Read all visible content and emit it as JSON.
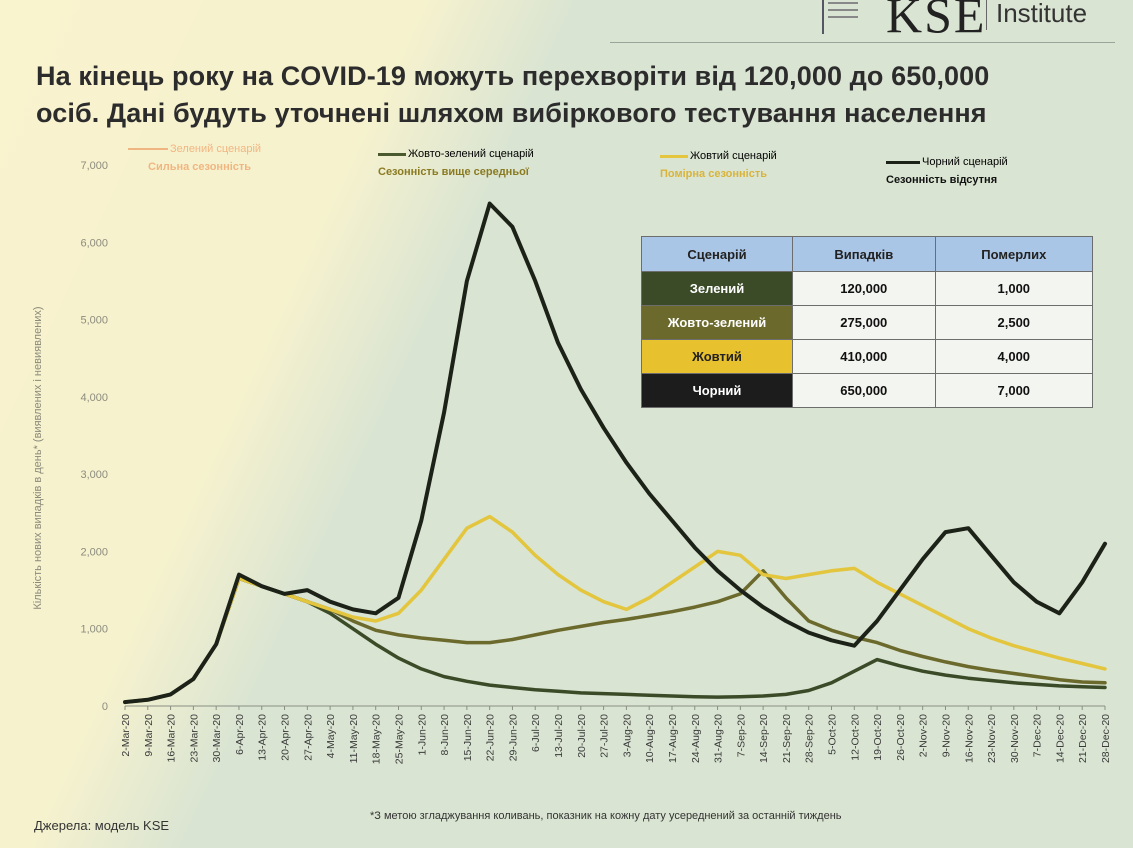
{
  "header": {
    "logo_text": "KSE",
    "institute": "Institute",
    "headline_line1": "На кінець року на COVID-19 можуть перехворіти від 120,000 до 650,000",
    "headline_line2": "осіб. Дані будуть уточнені шляхом вибіркового тестування населення"
  },
  "legend": [
    {
      "name": "Зелений сценарій",
      "subtitle": "Сильна сезонність",
      "color": "#f0b682"
    },
    {
      "name": "Жовто-зелений сценарій",
      "subtitle": "Сезонність вище середньої",
      "color": "#4a5a2e"
    },
    {
      "name": "Жовтий сценарій",
      "subtitle": "Помірна сезонність",
      "color": "#e3c53e"
    },
    {
      "name": "Чорний сценарій",
      "subtitle": "Сезонність відсутня",
      "color": "#1d2218"
    }
  ],
  "scenario_table": {
    "headers": [
      "Сценарій",
      "Випадків",
      "Померлих"
    ],
    "rows": [
      {
        "name": "Зелений",
        "cases": "120,000",
        "deaths": "1,000",
        "color": "#3b4b28"
      },
      {
        "name": "Жовто-зелений",
        "cases": "275,000",
        "deaths": "2,500",
        "color": "#6b6a2c"
      },
      {
        "name": "Жовтий",
        "cases": "410,000",
        "deaths": "4,000",
        "color": "#e8c12f"
      },
      {
        "name": "Чорний",
        "cases": "650,000",
        "deaths": "7,000",
        "color": "#1c1c1c"
      }
    ]
  },
  "footer": {
    "source": "Джерела: модель KSE",
    "note": "*З метою згладжування коливань, показник на кожну дату усереднений за останній тиждень"
  },
  "chart_data": {
    "type": "line",
    "ylabel": "Кількість нових випадків в день* (виявлених і невиявлених)",
    "ylim": [
      0,
      7000
    ],
    "yticks": [
      "0",
      "1,000",
      "2,000",
      "3,000",
      "4,000",
      "5,000",
      "6,000",
      "7,000"
    ],
    "x": [
      "2-Mar-20",
      "9-Mar-20",
      "16-Mar-20",
      "23-Mar-20",
      "30-Mar-20",
      "6-Apr-20",
      "13-Apr-20",
      "20-Apr-20",
      "27-Apr-20",
      "4-May-20",
      "11-May-20",
      "18-May-20",
      "25-May-20",
      "1-Jun-20",
      "8-Jun-20",
      "15-Jun-20",
      "22-Jun-20",
      "29-Jun-20",
      "6-Jul-20",
      "13-Jul-20",
      "20-Jul-20",
      "27-Jul-20",
      "3-Aug-20",
      "10-Aug-20",
      "17-Aug-20",
      "24-Aug-20",
      "31-Aug-20",
      "7-Sep-20",
      "14-Sep-20",
      "21-Sep-20",
      "28-Sep-20",
      "5-Oct-20",
      "12-Oct-20",
      "19-Oct-20",
      "26-Oct-20",
      "2-Nov-20",
      "9-Nov-20",
      "16-Nov-20",
      "23-Nov-20",
      "30-Nov-20",
      "7-Dec-20",
      "14-Dec-20",
      "21-Dec-20",
      "28-Dec-20"
    ],
    "series": [
      {
        "name": "Зелений сценарій",
        "color": "#3b4b28",
        "values": [
          50,
          80,
          150,
          350,
          800,
          1650,
          1550,
          1450,
          1350,
          1200,
          1000,
          800,
          620,
          480,
          380,
          320,
          270,
          240,
          210,
          190,
          170,
          160,
          150,
          140,
          130,
          120,
          115,
          120,
          130,
          150,
          200,
          300,
          450,
          600,
          520,
          450,
          400,
          360,
          330,
          300,
          280,
          260,
          250,
          240
        ]
      },
      {
        "name": "Жовто-зелений сценарій",
        "color": "#6b6a2c",
        "values": [
          50,
          80,
          150,
          350,
          800,
          1650,
          1550,
          1450,
          1350,
          1250,
          1100,
          980,
          920,
          880,
          850,
          820,
          820,
          860,
          920,
          980,
          1030,
          1080,
          1120,
          1170,
          1220,
          1280,
          1350,
          1450,
          1750,
          1400,
          1100,
          980,
          890,
          820,
          720,
          640,
          570,
          510,
          460,
          420,
          380,
          340,
          310,
          300
        ]
      },
      {
        "name": "Жовтий сценарій",
        "color": "#e3c53e",
        "values": [
          50,
          80,
          150,
          350,
          800,
          1650,
          1550,
          1450,
          1350,
          1250,
          1150,
          1100,
          1200,
          1500,
          1900,
          2300,
          2450,
          2250,
          1950,
          1700,
          1500,
          1350,
          1250,
          1400,
          1600,
          1800,
          2000,
          1950,
          1700,
          1650,
          1700,
          1750,
          1780,
          1600,
          1450,
          1300,
          1150,
          1000,
          880,
          780,
          700,
          620,
          550,
          480
        ]
      },
      {
        "name": "Чорний сценарій",
        "color": "#1d2218",
        "values": [
          50,
          80,
          150,
          350,
          800,
          1700,
          1550,
          1450,
          1500,
          1350,
          1250,
          1200,
          1400,
          2400,
          3800,
          5500,
          6500,
          6200,
          5500,
          4700,
          4100,
          3600,
          3150,
          2750,
          2400,
          2050,
          1750,
          1500,
          1280,
          1100,
          950,
          850,
          780,
          1100,
          1500,
          1900,
          2250,
          2300,
          1950,
          1600,
          1350,
          1200,
          1600,
          2100
        ]
      }
    ]
  }
}
